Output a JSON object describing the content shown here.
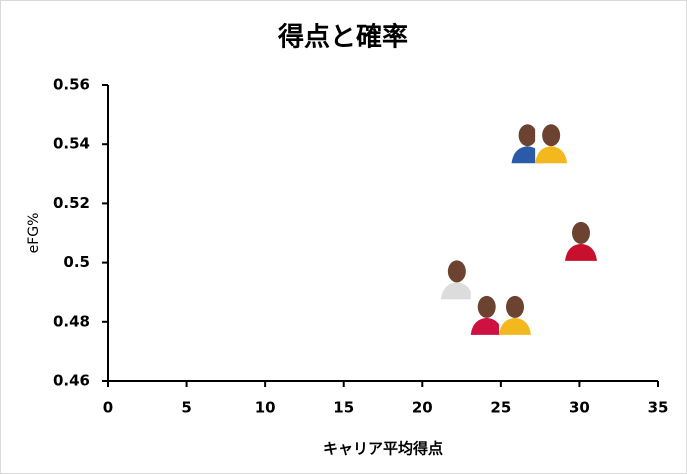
{
  "chart_data": {
    "type": "scatter",
    "title": "得点と確率",
    "x_label": "キャリア平均得点",
    "y_label": "eFG%",
    "x": [
      26.7,
      28.2,
      30.1,
      22.2,
      24.1,
      25.9
    ],
    "values": [
      0.541,
      0.541,
      0.508,
      0.495,
      0.483,
      0.483
    ],
    "colors": [
      "#2a5aa8",
      "#f2b81e",
      "#c8102e",
      "#dcdcdc",
      "#ce1141",
      "#f2b81e"
    ],
    "xlim": [
      0,
      35
    ],
    "xticks": [
      0,
      5,
      10,
      15,
      20,
      25,
      30,
      35
    ],
    "ylim": [
      0.46,
      0.56
    ],
    "yticks": [
      0.46,
      0.48,
      0.5,
      0.52,
      0.54,
      0.56
    ]
  }
}
